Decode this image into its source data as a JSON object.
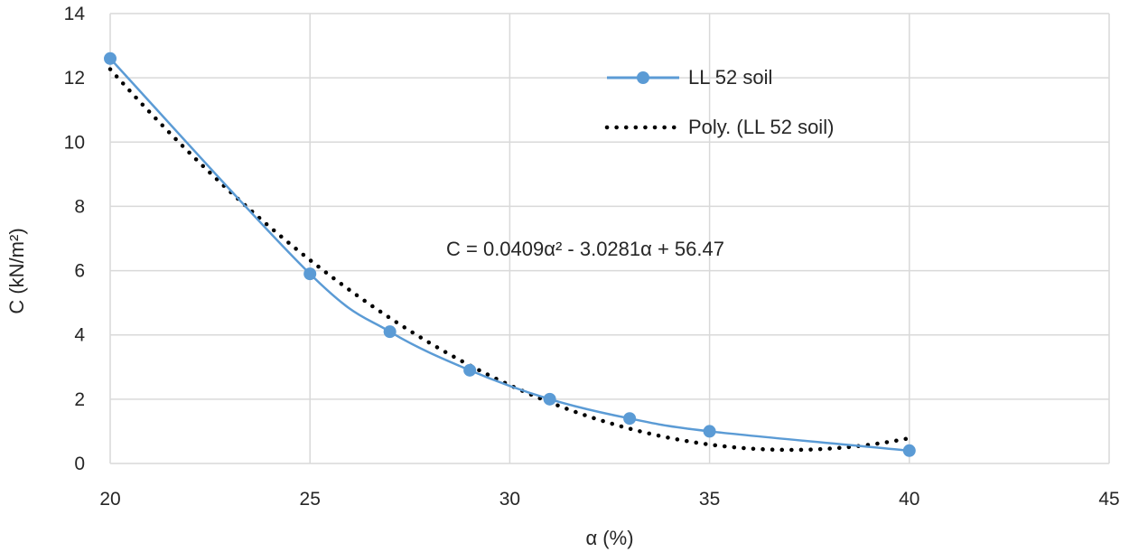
{
  "chart_data": {
    "type": "scatter",
    "xlabel": "α (%)",
    "ylabel": "C (kN/m²)",
    "xlim": [
      20,
      45
    ],
    "ylim": [
      0,
      14
    ],
    "x_ticks": [
      20,
      25,
      30,
      35,
      40,
      45
    ],
    "y_ticks": [
      0,
      2,
      4,
      6,
      8,
      10,
      12,
      14
    ],
    "grid": true,
    "legend_position": "top-right",
    "series": [
      {
        "name": "LL 52 soil",
        "style": "smooth line with circle markers",
        "color": "#5b9bd5",
        "x": [
          20,
          25,
          27,
          29,
          31,
          33,
          35,
          40
        ],
        "y": [
          12.6,
          5.9,
          4.1,
          2.9,
          2.0,
          1.4,
          1.0,
          0.4
        ]
      },
      {
        "name": "Poly. (LL 52 soil)",
        "style": "dotted trendline",
        "color": "#000000",
        "polynomial": {
          "a2": 0.0409,
          "a1": -3.0281,
          "a0": 56.47
        },
        "x_range": [
          20,
          40
        ]
      }
    ],
    "annotations": [
      {
        "text": "C = 0.0409α² - 3.0281α + 56.47"
      }
    ]
  }
}
